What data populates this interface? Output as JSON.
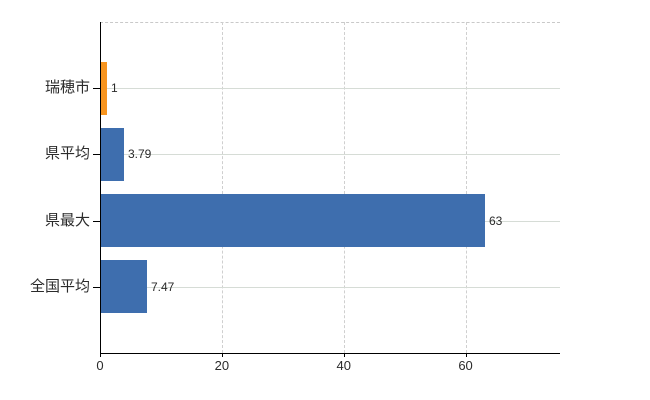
{
  "chart_data": {
    "type": "bar",
    "orientation": "horizontal",
    "title": "",
    "categories": [
      "瑞穂市",
      "県平均",
      "県最大",
      "全国平均"
    ],
    "values": [
      1,
      3.79,
      63,
      7.47
    ],
    "value_labels": [
      "1",
      "3.79",
      "63",
      "7.47"
    ],
    "bar_colors": [
      "#f7941e",
      "#3e6eae",
      "#3e6eae",
      "#3e6eae"
    ],
    "x_ticks": [
      0,
      20,
      40,
      60
    ],
    "x_tick_labels": [
      "0",
      "20",
      "40",
      "60"
    ],
    "xlim": [
      0,
      75.5
    ],
    "legend": null,
    "grid": {
      "vertical_style": "dashed",
      "row_lines": true,
      "top_border": "dashed"
    },
    "colors": {
      "bar_blue": "#3e6eae",
      "bar_orange": "#f7941e",
      "axis": "#000000",
      "grid_vertical": "#cfcfcf",
      "grid_row": "#d6dcd6",
      "text": "#2b2b2b",
      "background": "#ffffff"
    }
  }
}
